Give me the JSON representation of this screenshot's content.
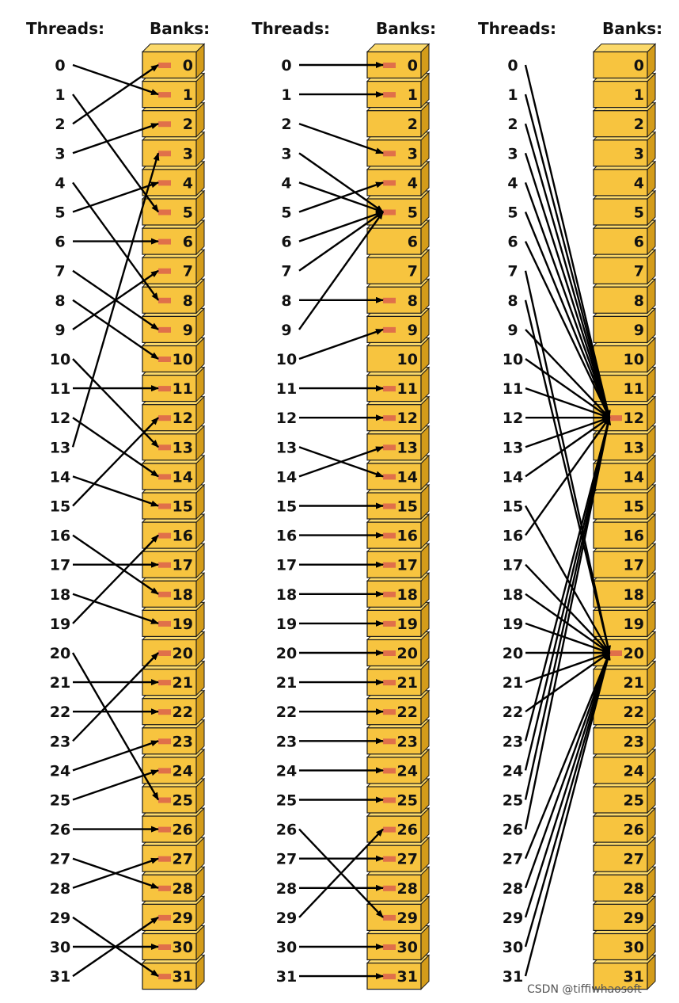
{
  "colors": {
    "bank_fill": "#F7C43F",
    "bank_side": "#D49C1A",
    "bank_top": "#FBD96B",
    "bank_outline": "#1a1a1a",
    "marker": "#E0704A",
    "arrow": "#000000"
  },
  "panels": [
    {
      "threads_header": "Threads:",
      "banks_header": "Banks:",
      "mapping": [
        1,
        5,
        0,
        2,
        8,
        4,
        6,
        9,
        10,
        7,
        13,
        11,
        14,
        3,
        15,
        12,
        18,
        17,
        19,
        16,
        25,
        21,
        22,
        20,
        23,
        24,
        26,
        28,
        27,
        31,
        30,
        29
      ]
    },
    {
      "threads_header": "Threads:",
      "banks_header": "Banks:",
      "mapping": [
        0,
        1,
        3,
        5,
        5,
        4,
        5,
        5,
        8,
        5,
        9,
        11,
        12,
        14,
        13,
        15,
        16,
        17,
        18,
        19,
        20,
        21,
        22,
        23,
        24,
        25,
        29,
        27,
        28,
        26,
        30,
        31
      ]
    },
    {
      "threads_header": "Threads:",
      "banks_header": "Banks:",
      "mapping": [
        12,
        12,
        12,
        12,
        12,
        12,
        12,
        20,
        20,
        12,
        12,
        12,
        12,
        12,
        12,
        20,
        12,
        20,
        20,
        20,
        20,
        20,
        20,
        12,
        12,
        12,
        12,
        20,
        20,
        20,
        20,
        20
      ]
    }
  ],
  "thread_labels": [
    "0",
    "1",
    "2",
    "3",
    "4",
    "5",
    "6",
    "7",
    "8",
    "9",
    "10",
    "11",
    "12",
    "13",
    "14",
    "15",
    "16",
    "17",
    "18",
    "19",
    "20",
    "21",
    "22",
    "23",
    "24",
    "25",
    "26",
    "27",
    "28",
    "29",
    "30",
    "31"
  ],
  "bank_labels": [
    "0",
    "1",
    "2",
    "3",
    "4",
    "5",
    "6",
    "7",
    "8",
    "9",
    "10",
    "11",
    "12",
    "13",
    "14",
    "15",
    "16",
    "17",
    "18",
    "19",
    "20",
    "21",
    "22",
    "23",
    "24",
    "25",
    "26",
    "27",
    "28",
    "29",
    "30",
    "31"
  ],
  "watermark": "CSDN @tiffiwhaosoft"
}
